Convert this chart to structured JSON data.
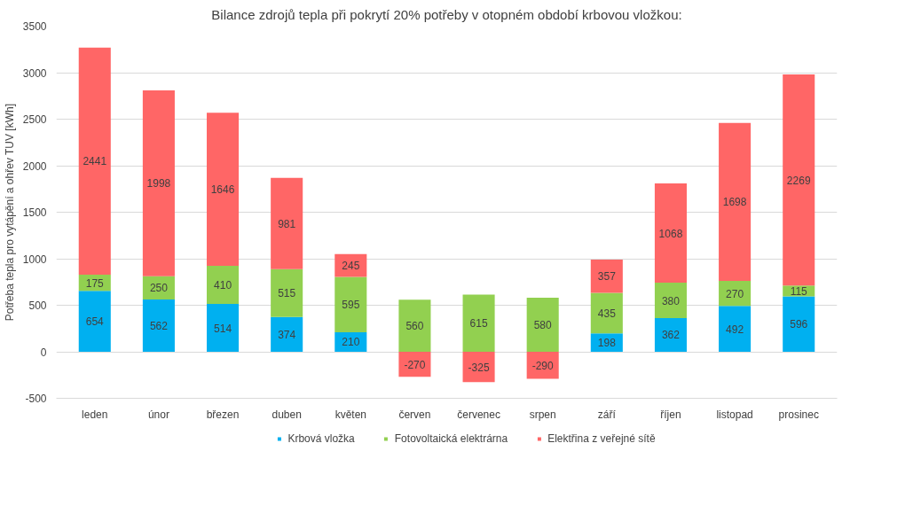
{
  "chart_data": {
    "type": "bar",
    "title": "Bilance zdrojů tepla při pokrytí 20% potřeby v otopném období krbovou vložkou:",
    "ylabel": "Potřeba tepla pro vytápění a ohřev TUV [kWh]",
    "categories": [
      "leden",
      "únor",
      "březen",
      "duben",
      "květen",
      "červen",
      "červenec",
      "srpen",
      "září",
      "říjen",
      "listopad",
      "prosinec"
    ],
    "series": [
      {
        "name": "Krbová vložka",
        "color": "#00b0f0",
        "values": [
          654,
          562,
          514,
          374,
          210,
          null,
          null,
          null,
          198,
          362,
          492,
          596
        ]
      },
      {
        "name": "Fotovoltaická elektrárna",
        "color": "#92d050",
        "values": [
          175,
          250,
          410,
          515,
          595,
          560,
          615,
          580,
          435,
          380,
          270,
          115
        ]
      },
      {
        "name": "Elektřina z veřejné sítě",
        "color": "#ff6666",
        "values": [
          2441,
          1998,
          1646,
          981,
          245,
          -270,
          -325,
          -290,
          357,
          1068,
          1698,
          2269
        ]
      }
    ],
    "stacked": true,
    "data_labels": true,
    "ylim": [
      -500,
      3500
    ],
    "yticks": [
      -500,
      0,
      500,
      1000,
      1500,
      2000,
      2500,
      3000,
      3500
    ],
    "grid": "y",
    "legend": "bottom"
  }
}
